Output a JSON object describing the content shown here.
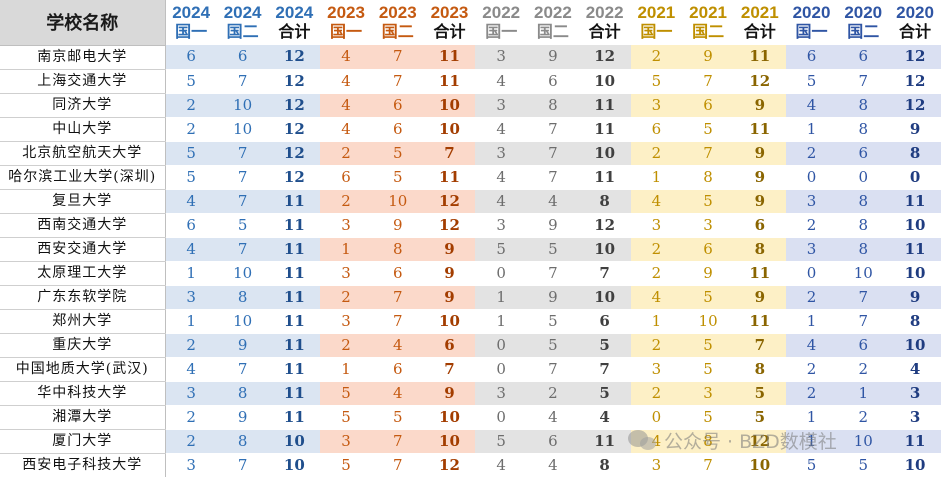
{
  "header": {
    "name_col": "学校名称",
    "years": [
      "2024",
      "2023",
      "2022",
      "2021",
      "2020"
    ],
    "types": [
      "国一",
      "国二",
      "合计"
    ]
  },
  "rows": [
    {
      "name": "南京邮电大学",
      "v": [
        6,
        6,
        12,
        4,
        7,
        11,
        3,
        9,
        12,
        2,
        9,
        11,
        6,
        6,
        12
      ]
    },
    {
      "name": "上海交通大学",
      "v": [
        5,
        7,
        12,
        4,
        7,
        11,
        4,
        6,
        10,
        5,
        7,
        12,
        5,
        7,
        12
      ]
    },
    {
      "name": "同济大学",
      "v": [
        2,
        10,
        12,
        4,
        6,
        10,
        3,
        8,
        11,
        3,
        6,
        9,
        4,
        8,
        12
      ]
    },
    {
      "name": "中山大学",
      "v": [
        2,
        10,
        12,
        4,
        6,
        10,
        4,
        7,
        11,
        6,
        5,
        11,
        1,
        8,
        9
      ]
    },
    {
      "name": "北京航空航天大学",
      "v": [
        5,
        7,
        12,
        2,
        5,
        7,
        3,
        7,
        10,
        2,
        7,
        9,
        2,
        6,
        8
      ]
    },
    {
      "name": "哈尔滨工业大学(深圳)",
      "v": [
        5,
        7,
        12,
        6,
        5,
        11,
        4,
        7,
        11,
        1,
        8,
        9,
        0,
        0,
        0
      ]
    },
    {
      "name": "复旦大学",
      "v": [
        4,
        7,
        11,
        2,
        10,
        12,
        4,
        4,
        8,
        4,
        5,
        9,
        3,
        8,
        11
      ]
    },
    {
      "name": "西南交通大学",
      "v": [
        6,
        5,
        11,
        3,
        9,
        12,
        3,
        9,
        12,
        3,
        3,
        6,
        2,
        8,
        10
      ]
    },
    {
      "name": "西安交通大学",
      "v": [
        4,
        7,
        11,
        1,
        8,
        9,
        5,
        5,
        10,
        2,
        6,
        8,
        3,
        8,
        11
      ]
    },
    {
      "name": "太原理工大学",
      "v": [
        1,
        10,
        11,
        3,
        6,
        9,
        0,
        7,
        7,
        2,
        9,
        11,
        0,
        10,
        10
      ]
    },
    {
      "name": "广东东软学院",
      "v": [
        3,
        8,
        11,
        2,
        7,
        9,
        1,
        9,
        10,
        4,
        5,
        9,
        2,
        7,
        9
      ]
    },
    {
      "name": "郑州大学",
      "v": [
        1,
        10,
        11,
        3,
        7,
        10,
        1,
        5,
        6,
        1,
        10,
        11,
        1,
        7,
        8
      ]
    },
    {
      "name": "重庆大学",
      "v": [
        2,
        9,
        11,
        2,
        4,
        6,
        0,
        5,
        5,
        2,
        5,
        7,
        4,
        6,
        10
      ]
    },
    {
      "name": "中国地质大学(武汉)",
      "v": [
        4,
        7,
        11,
        1,
        6,
        7,
        0,
        7,
        7,
        3,
        5,
        8,
        2,
        2,
        4
      ]
    },
    {
      "name": "华中科技大学",
      "v": [
        3,
        8,
        11,
        5,
        4,
        9,
        3,
        2,
        5,
        2,
        3,
        5,
        2,
        1,
        3
      ]
    },
    {
      "name": "湘潭大学",
      "v": [
        2,
        9,
        11,
        5,
        5,
        10,
        0,
        4,
        4,
        0,
        5,
        5,
        1,
        2,
        3
      ]
    },
    {
      "name": "厦门大学",
      "v": [
        2,
        8,
        10,
        3,
        7,
        10,
        5,
        6,
        11,
        4,
        8,
        12,
        1,
        10,
        11
      ]
    },
    {
      "name": "西安电子科技大学",
      "v": [
        3,
        7,
        10,
        5,
        7,
        12,
        4,
        4,
        8,
        3,
        7,
        10,
        5,
        5,
        10
      ]
    }
  ],
  "watermark": {
    "icon": "wechat-icon",
    "text": "公众号 · BZD数模社"
  }
}
